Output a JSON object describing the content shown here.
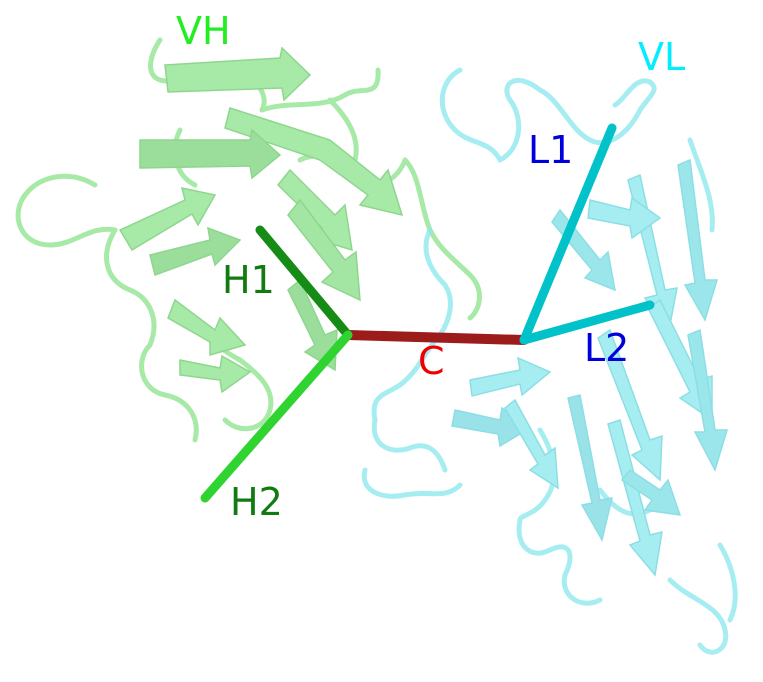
{
  "labels": {
    "vh": "VH",
    "vl": "VL",
    "h1": "H1",
    "h2": "H2",
    "l1": "L1",
    "l2": "L2",
    "c": "C"
  },
  "colors": {
    "vh_domain": "#8fe38f",
    "vh_domain_dark": "#6fcb6f",
    "vl_domain": "#8ee8ee",
    "vl_domain_dark": "#6dd6de",
    "vh_label": "#22ee22",
    "vl_label": "#00eeff",
    "h1_axis": "#168c16",
    "h2_axis": "#30d430",
    "l1_axis": "#00c2c8",
    "l2_axis": "#00c2c8",
    "c_axis": "#9c1c1c",
    "h_labels": "#117a11",
    "l_labels": "#0000dd",
    "c_label": "#ee0000"
  },
  "icons": {
    "vh_domain": "protein-cartoon-vh",
    "vl_domain": "protein-cartoon-vl"
  }
}
